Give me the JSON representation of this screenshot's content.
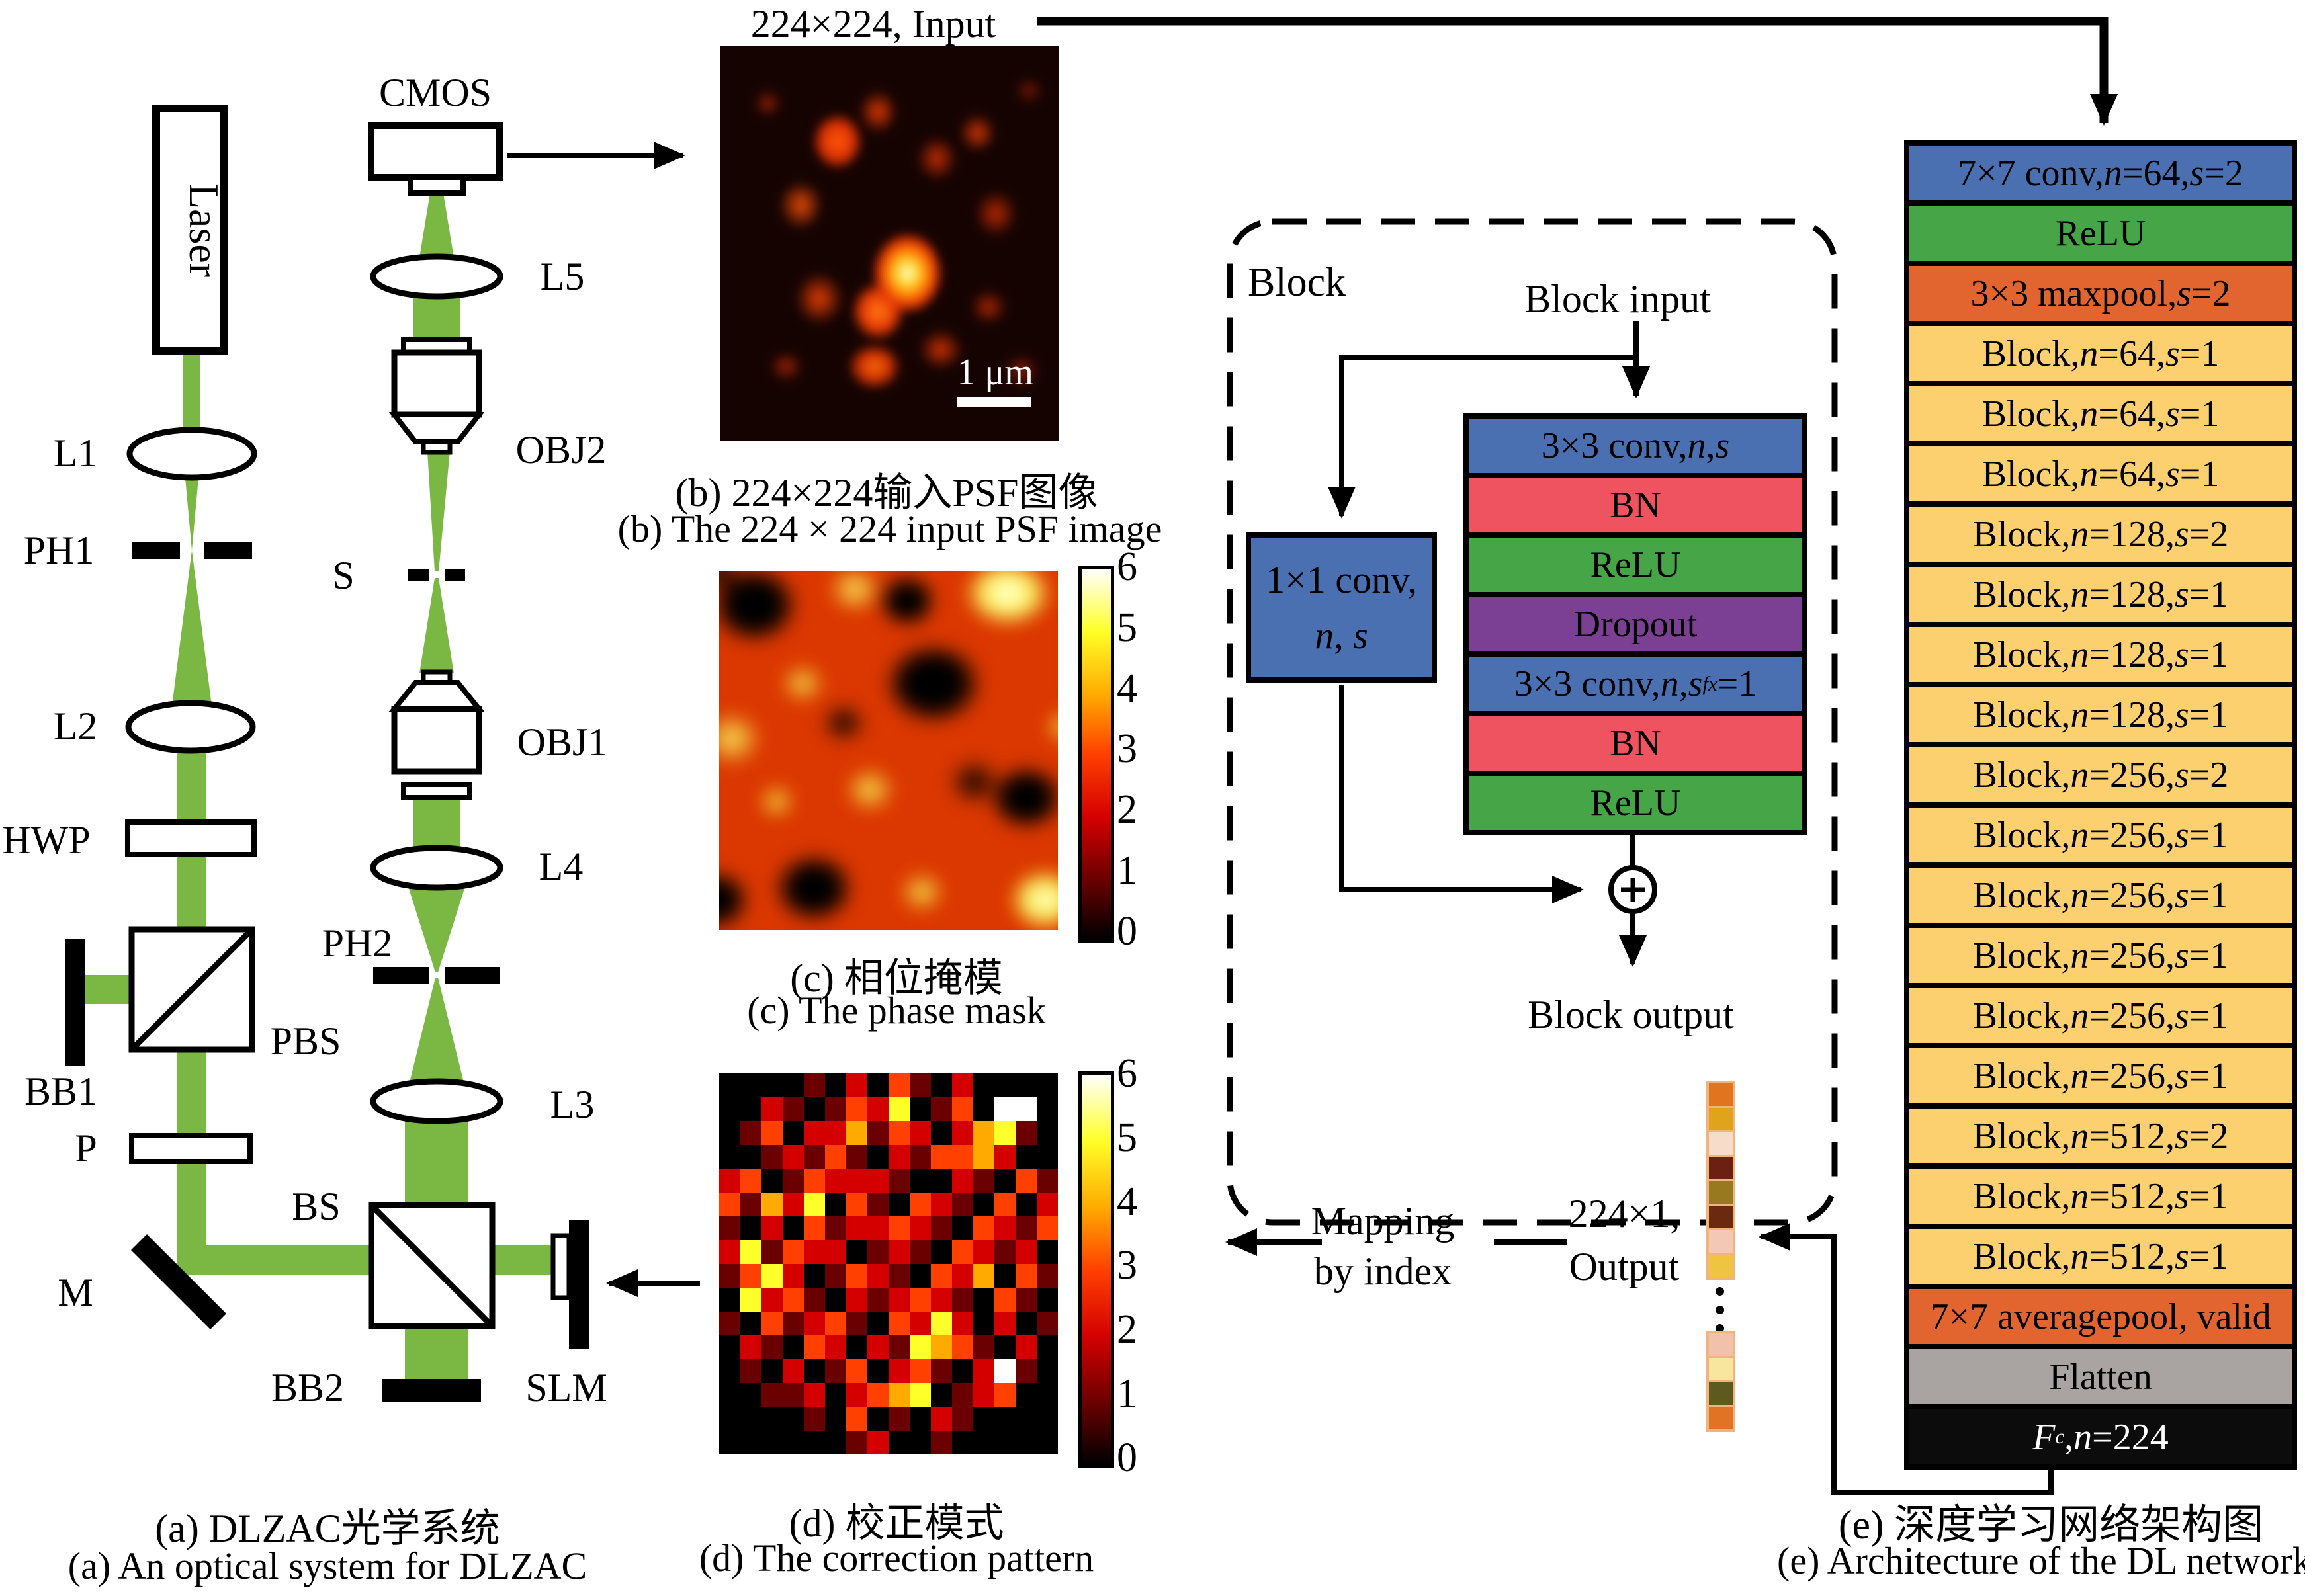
{
  "panel_a": {
    "caption_zh": "(a) DLZAC光学系统",
    "caption_en": "(a) An optical system for DLZAC",
    "labels": {
      "laser": "Laser",
      "l1": "L1",
      "ph1": "PH1",
      "l2": "L2",
      "hwp": "HWP",
      "pbs": "PBS",
      "bb1": "BB1",
      "p": "P",
      "m": "M",
      "bs": "BS",
      "bb2": "BB2",
      "slm": "SLM",
      "cmos": "CMOS",
      "l5": "L5",
      "obj2": "OBJ2",
      "s": "S",
      "obj1": "OBJ1",
      "l4": "L4",
      "ph2": "PH2",
      "l3": "L3"
    }
  },
  "panel_b": {
    "input_label": "224×224, Input",
    "scale_label": "1 μm",
    "caption_zh": "(b) 224×224输入PSF图像",
    "caption_en": "(b) The 224 × 224 input PSF image"
  },
  "panel_c": {
    "caption_zh": "(c) 相位掩模",
    "caption_en": "(c) The phase mask",
    "colorbar_ticks": [
      "6",
      "5",
      "4",
      "3",
      "2",
      "1",
      "0"
    ]
  },
  "panel_d": {
    "caption_zh": "(d) 校正模式",
    "caption_en": "(d) The correction pattern",
    "colorbar_ticks": [
      "6",
      "5",
      "4",
      "3",
      "2",
      "1",
      "0"
    ],
    "grid": [
      "0000102031020000",
      "0021013250130660",
      "0130224132024510",
      "0012131021334200",
      "2301322210021031",
      "3142503103210302",
      "1020312232103213",
      "2513220121032120",
      "1352013210324031",
      "0523102123210310",
      "1031231032520201",
      "0210320215431020",
      "0102013023102610",
      "0011202345012300",
      "0000103010210000",
      "0000001200100000"
    ]
  },
  "block_diagram": {
    "title": "Block",
    "input_label": "Block input",
    "output_label": "Block output",
    "shortcut_line1": "1×1 conv,",
    "shortcut_line2": "*n*, *s*",
    "layers": [
      {
        "label": "3×3 conv, *n*, *s*",
        "color": "blue"
      },
      {
        "label": "BN",
        "color": "red"
      },
      {
        "label": "ReLU",
        "color": "green"
      },
      {
        "label": "Dropout",
        "color": "purple"
      },
      {
        "label": "3×3 conv, *n*, *s*~fx~=1",
        "color": "blue"
      },
      {
        "label": "BN",
        "color": "red"
      },
      {
        "label": "ReLU",
        "color": "green"
      }
    ]
  },
  "mapping": {
    "line1": "Mapping",
    "line2": "by index",
    "output_line1": "224×1,",
    "output_line2": "Output"
  },
  "output_strip": {
    "top_colors": [
      "#e0741f",
      "#dfa31c",
      "#f7ddc9",
      "#6b2012",
      "#97791f",
      "#6b2a10",
      "#f3c8b4",
      "#eec440"
    ],
    "bottom_colors": [
      "#f2c1ab",
      "#f8e69e",
      "#5c5a1e",
      "#e07424"
    ]
  },
  "network": {
    "caption_zh": "(e) 深度学习网络架构图",
    "caption_en": "(e) Architecture of the DL network",
    "rows": [
      {
        "label": "7×7 conv, *n*=64, *s*=2",
        "color": "blue"
      },
      {
        "label": "ReLU",
        "color": "green"
      },
      {
        "label": "3×3 maxpool, *s*=2",
        "color": "orange"
      },
      {
        "label": "Block, *n*=64, *s*=1",
        "color": "yellow"
      },
      {
        "label": "Block, *n*=64, *s*=1",
        "color": "yellow"
      },
      {
        "label": "Block, *n*=64, *s*=1",
        "color": "yellow"
      },
      {
        "label": "Block, *n*=128, *s*=2",
        "color": "yellow"
      },
      {
        "label": "Block, *n*=128, *s*=1",
        "color": "yellow"
      },
      {
        "label": "Block, *n*=128, *s*=1",
        "color": "yellow"
      },
      {
        "label": "Block, *n*=128, *s*=1",
        "color": "yellow"
      },
      {
        "label": "Block, *n*=256, *s*=2",
        "color": "yellow"
      },
      {
        "label": "Block, *n*=256, *s*=1",
        "color": "yellow"
      },
      {
        "label": "Block, *n*=256, *s*=1",
        "color": "yellow"
      },
      {
        "label": "Block, *n*=256, *s*=1",
        "color": "yellow"
      },
      {
        "label": "Block, *n*=256, *s*=1",
        "color": "yellow"
      },
      {
        "label": "Block, *n*=256, *s*=1",
        "color": "yellow"
      },
      {
        "label": "Block, *n*=512, *s*=2",
        "color": "yellow"
      },
      {
        "label": "Block, *n*=512, *s*=1",
        "color": "yellow"
      },
      {
        "label": "Block, *n*=512, *s*=1",
        "color": "yellow"
      },
      {
        "label": "7×7 averagepool, valid",
        "color": "orange"
      },
      {
        "label": "Flatten",
        "color": "gray"
      },
      {
        "label": "*F*~c~, *n*=224",
        "color": "black"
      }
    ]
  },
  "colors": {
    "beam_green": "#7ab843",
    "conv_blue": "#4a70b2",
    "relu_green": "#46a546",
    "pool_orange": "#e2642f",
    "block_yellow": "#fcd06e",
    "bn_red": "#ef5360",
    "dropout_purple": "#7b3f94",
    "flatten_gray": "#a9a3a2",
    "fc_black": "#0c0c0c"
  }
}
